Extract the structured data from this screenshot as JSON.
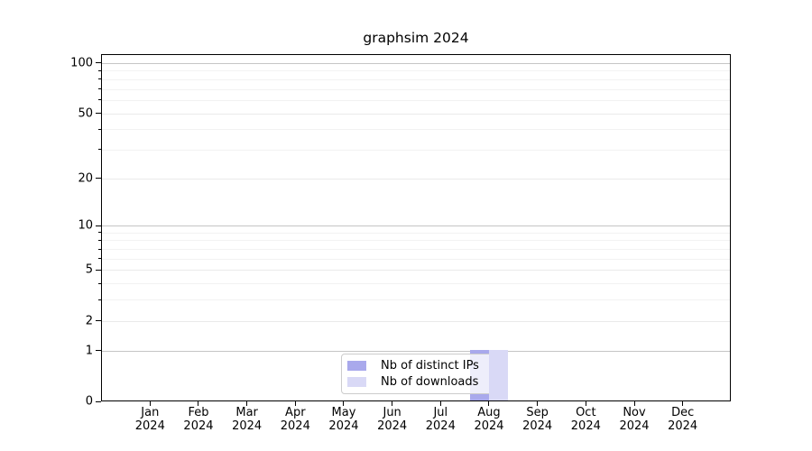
{
  "chart_data": {
    "type": "bar",
    "title": "graphsim 2024",
    "categories": [
      "Jan",
      "Feb",
      "Mar",
      "Apr",
      "May",
      "Jun",
      "Jul",
      "Aug",
      "Sep",
      "Oct",
      "Nov",
      "Dec"
    ],
    "category_year": "2024",
    "series": [
      {
        "name": "Nb of distinct IPs",
        "color": "#a9a9ec",
        "values": [
          0,
          0,
          0,
          0,
          0,
          0,
          0,
          1,
          0,
          0,
          0,
          0
        ]
      },
      {
        "name": "Nb of downloads",
        "color": "#d9d9f6",
        "values": [
          0,
          0,
          0,
          0,
          0,
          0,
          0,
          1,
          0,
          0,
          0,
          0
        ]
      }
    ],
    "y_scale": "log1p",
    "ylim": [
      0,
      113
    ],
    "y_ticks": [
      0,
      1,
      2,
      5,
      10,
      20,
      50,
      100
    ],
    "y_major_emphasis": [
      1,
      10,
      100
    ],
    "y_minor_ticks": [
      3,
      4,
      6,
      7,
      8,
      9,
      30,
      40,
      60,
      70,
      80,
      90
    ],
    "grid": "both",
    "legend_position": "bottom-center"
  }
}
